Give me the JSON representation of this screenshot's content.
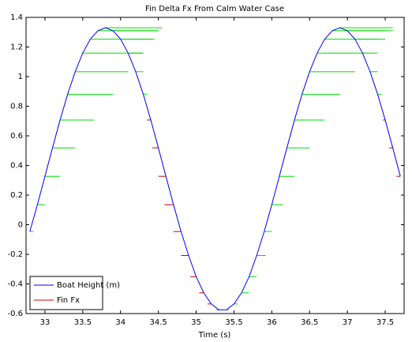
{
  "chart_data": {
    "type": "line",
    "title": "Fin Delta Fx From Calm Water Case",
    "x_label": "Time (s)",
    "x": [
      32.8,
      32.9,
      33.0,
      33.1,
      33.2,
      33.3,
      33.4,
      33.5,
      33.6,
      33.7,
      33.8,
      33.9,
      34.0,
      34.1,
      34.2,
      34.3,
      34.4,
      34.5,
      34.6,
      34.7,
      34.8,
      34.9,
      35.0,
      35.1,
      35.2,
      35.3,
      35.4,
      35.5,
      35.6,
      35.7,
      35.8,
      35.9,
      36.0,
      36.1,
      36.2,
      36.3,
      36.4,
      36.5,
      36.6,
      36.7,
      36.8,
      36.9,
      37.0,
      37.1,
      37.2,
      37.3,
      37.4,
      37.5,
      37.6,
      37.7
    ],
    "series": [
      {
        "name": "Boat Height (m)",
        "color": "#0000ff",
        "values": [
          -0.046,
          0.135,
          0.327,
          0.519,
          0.707,
          0.881,
          1.033,
          1.159,
          1.253,
          1.31,
          1.33,
          1.31,
          1.253,
          1.159,
          1.033,
          0.881,
          0.707,
          0.519,
          0.327,
          0.135,
          -0.046,
          -0.208,
          -0.351,
          -0.46,
          -0.535,
          -0.575,
          -0.575,
          -0.535,
          -0.46,
          -0.351,
          -0.208,
          -0.046,
          0.135,
          0.327,
          0.519,
          0.707,
          0.881,
          1.033,
          1.159,
          1.253,
          1.31,
          1.33,
          1.31,
          1.253,
          1.159,
          1.033,
          0.881,
          0.707,
          0.519,
          0.327
        ]
      },
      {
        "name": "Fin Fx",
        "color": "#cc0000",
        "positive_color": "#00dd00",
        "values": [
          0.05,
          0.1,
          0.2,
          0.3,
          0.45,
          0.6,
          0.7,
          0.8,
          0.85,
          0.8,
          0.75,
          0.6,
          0.4,
          0.2,
          0.1,
          0.05,
          -0.05,
          -0.08,
          -0.1,
          -0.12,
          -0.1,
          -0.1,
          -0.08,
          -0.06,
          -0.05,
          -0.03,
          0.03,
          0.05,
          0.1,
          0.1,
          0.12,
          0.1,
          0.15,
          0.2,
          0.3,
          0.4,
          0.5,
          0.6,
          0.65,
          0.7,
          0.7,
          0.7,
          0.6,
          0.4,
          0.2,
          0.1,
          0.05,
          -0.03,
          -0.05,
          -0.05
        ]
      }
    ],
    "xlim": [
      32.75,
      37.75
    ],
    "xticks": [
      33,
      33.5,
      34,
      34.5,
      35,
      35.5,
      36,
      36.5,
      37,
      37.5
    ],
    "ylim": [
      -0.6,
      1.4
    ],
    "yticks": [
      -0.6,
      -0.4,
      -0.2,
      0,
      0.2,
      0.4,
      0.6,
      0.8,
      1,
      1.2,
      1.4
    ],
    "legend": "lower left"
  }
}
